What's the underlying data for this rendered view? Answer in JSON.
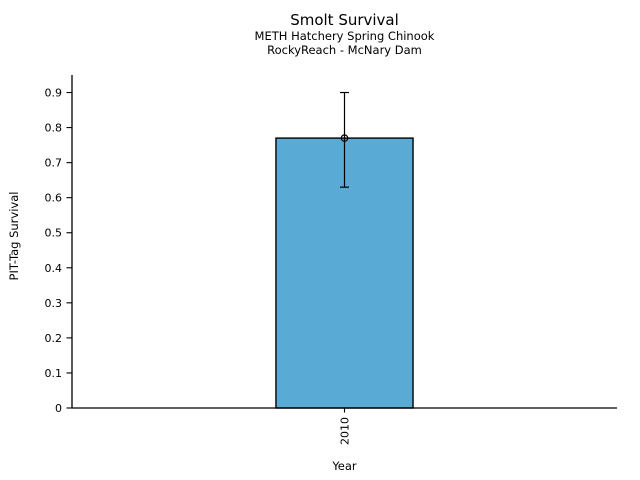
{
  "chart_data": {
    "type": "bar",
    "title": "Smolt Survival",
    "subtitle_line1": "METH Hatchery Spring Chinook",
    "subtitle_line2": "RockyReach - McNary Dam",
    "xlabel": "Year",
    "ylabel": "PIT-Tag Survival",
    "categories": [
      "2010"
    ],
    "values": [
      0.77
    ],
    "error_bars": [
      {
        "lower": 0.63,
        "upper": 0.9
      }
    ],
    "marker": "open-circle",
    "ylim": [
      0,
      0.95
    ],
    "yticks": [
      0,
      0.1,
      0.2,
      0.3,
      0.4,
      0.5,
      0.6,
      0.7,
      0.8,
      0.9
    ],
    "ytick_labels": [
      "0",
      "0.1",
      "0.2",
      "0.3",
      "0.4",
      "0.5",
      "0.6",
      "0.7",
      "0.8",
      "0.9"
    ],
    "xtick_rotation": 90,
    "grid": false,
    "legend": "none",
    "bar_color": "#5aaad6",
    "bar_edge_color": "#000000",
    "axis_color": "#000000",
    "background_color": "#ffffff"
  }
}
